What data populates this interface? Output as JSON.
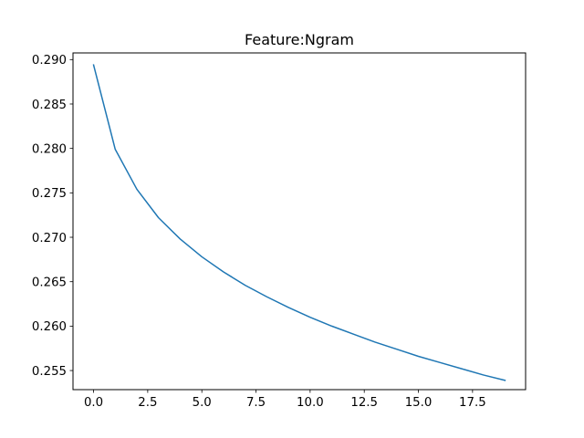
{
  "chart_data": {
    "type": "line",
    "title": "Feature:Ngram",
    "xlabel": "",
    "ylabel": "",
    "xlim": [
      -0.95,
      19.95
    ],
    "ylim": [
      0.25285,
      0.29075
    ],
    "x_ticks": [
      0.0,
      2.5,
      5.0,
      7.5,
      10.0,
      12.5,
      15.0,
      17.5
    ],
    "x_tick_labels": [
      "0.0",
      "2.5",
      "5.0",
      "7.5",
      "10.0",
      "12.5",
      "15.0",
      "17.5"
    ],
    "y_ticks": [
      0.255,
      0.26,
      0.265,
      0.27,
      0.275,
      0.28,
      0.285,
      0.29
    ],
    "y_tick_labels": [
      "0.255",
      "0.260",
      "0.265",
      "0.270",
      "0.275",
      "0.280",
      "0.285",
      "0.290"
    ],
    "grid": false,
    "legend": "none",
    "series": [
      {
        "color": "#1f77b4",
        "x": [
          0,
          1,
          2,
          3,
          4,
          5,
          6,
          7,
          8,
          9,
          10,
          11,
          12,
          13,
          14,
          15,
          16,
          17,
          18,
          19
        ],
        "y": [
          0.2894,
          0.2799,
          0.2754,
          0.2722,
          0.2698,
          0.2678,
          0.2661,
          0.2646,
          0.2633,
          0.2621,
          0.261,
          0.26,
          0.2591,
          0.2582,
          0.2574,
          0.2566,
          0.2559,
          0.2552,
          0.2545,
          0.2539
        ]
      }
    ]
  }
}
